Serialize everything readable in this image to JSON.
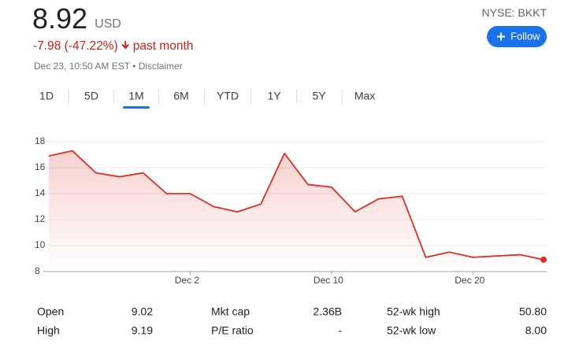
{
  "header": {
    "price": "8.92",
    "currency": "USD",
    "change": "-7.98 (-47.22%)",
    "period": "past month",
    "timestamp": "Dec 23, 10:50 AM EST • Disclaimer",
    "exchange": "NYSE: BKKT",
    "follow": "Follow"
  },
  "tabs": {
    "items": [
      "1D",
      "5D",
      "1M",
      "6M",
      "YTD",
      "1Y",
      "5Y",
      "Max"
    ],
    "selected": "1M"
  },
  "chart_data": {
    "type": "line",
    "categories": [
      null,
      null,
      null,
      null,
      null,
      null,
      "Dec 2",
      null,
      null,
      null,
      null,
      null,
      "Dec 10",
      null,
      null,
      null,
      null,
      null,
      "Dec 20",
      null,
      null,
      null
    ],
    "series": [
      {
        "name": "BKKT",
        "color": "#d93025",
        "values": [
          16.9,
          17.3,
          15.6,
          15.3,
          15.6,
          14.0,
          14.0,
          13.0,
          12.6,
          13.2,
          17.1,
          14.7,
          14.5,
          12.6,
          13.6,
          13.8,
          9.1,
          9.5,
          9.1,
          9.2,
          9.3,
          8.92
        ]
      }
    ],
    "ylim": [
      8,
      18
    ],
    "yticks": [
      8,
      10,
      12,
      14,
      16,
      18
    ],
    "grid": true
  },
  "stats": [
    {
      "label": "Open",
      "value": "9.02"
    },
    {
      "label": "High",
      "value": "9.19"
    },
    {
      "label": "Mkt cap",
      "value": "2.36B"
    },
    {
      "label": "P/E ratio",
      "value": "-"
    },
    {
      "label": "52-wk high",
      "value": "50.80"
    },
    {
      "label": "52-wk low",
      "value": "8.00"
    }
  ]
}
